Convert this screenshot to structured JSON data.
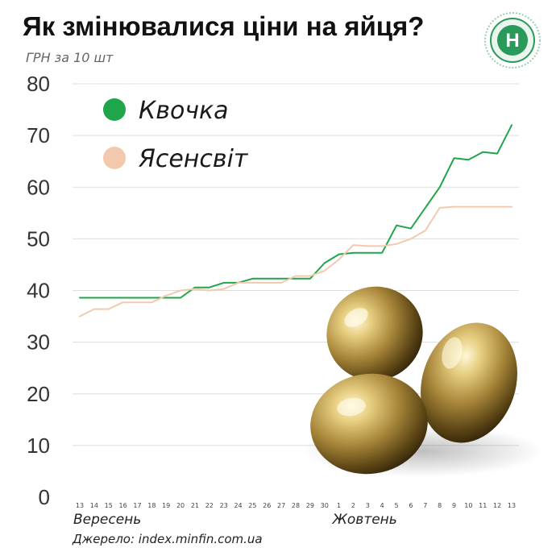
{
  "title": "Як змінювалися ціни на яйця?",
  "unit_label": "ГРН за 10 шт",
  "source": "Джерело: index.minfin.com.ua",
  "logo": {
    "icon": "minfin-emblem-icon",
    "letter": "Н",
    "color": "#2a9a5a"
  },
  "chart_data": {
    "type": "line",
    "title": "Як змінювалися ціни на яйця?",
    "ylabel": "ГРН за 10 шт",
    "xlabel": "",
    "ylim": [
      0,
      80
    ],
    "yticks": [
      0,
      10,
      20,
      30,
      40,
      50,
      60,
      70,
      80
    ],
    "grid": true,
    "legend_position": "top-left",
    "months": [
      {
        "label": "Вересень",
        "at": "13"
      },
      {
        "label": "Жовтень",
        "at": "1"
      }
    ],
    "x": [
      "13",
      "14",
      "15",
      "16",
      "17",
      "18",
      "19",
      "20",
      "21",
      "22",
      "23",
      "24",
      "25",
      "26",
      "27",
      "28",
      "29",
      "30",
      "1",
      "2",
      "3",
      "4",
      "5",
      "6",
      "7",
      "8",
      "9",
      "10",
      "11",
      "12",
      "13"
    ],
    "series": [
      {
        "name": "Квочка",
        "color": "#1fa64a",
        "values": [
          38.6,
          38.6,
          38.6,
          38.6,
          38.6,
          38.6,
          38.6,
          38.6,
          40.6,
          40.6,
          41.5,
          41.5,
          42.3,
          42.3,
          42.3,
          42.3,
          42.3,
          45.3,
          47.0,
          47.3,
          47.3,
          47.3,
          52.6,
          52.0,
          56.0,
          60.0,
          65.6,
          65.3,
          66.8,
          66.5,
          72.0
        ]
      },
      {
        "name": "Ясенсвіт",
        "color": "#f3c9ae",
        "values": [
          35.0,
          36.4,
          36.4,
          37.7,
          37.7,
          37.7,
          39.0,
          40.0,
          40.3,
          40.0,
          40.3,
          41.5,
          41.5,
          41.5,
          41.5,
          42.8,
          42.8,
          43.8,
          46.0,
          48.8,
          48.6,
          48.6,
          49.0,
          50.0,
          51.6,
          56.0,
          56.2,
          56.2,
          56.2,
          56.2,
          56.2
        ]
      }
    ]
  }
}
